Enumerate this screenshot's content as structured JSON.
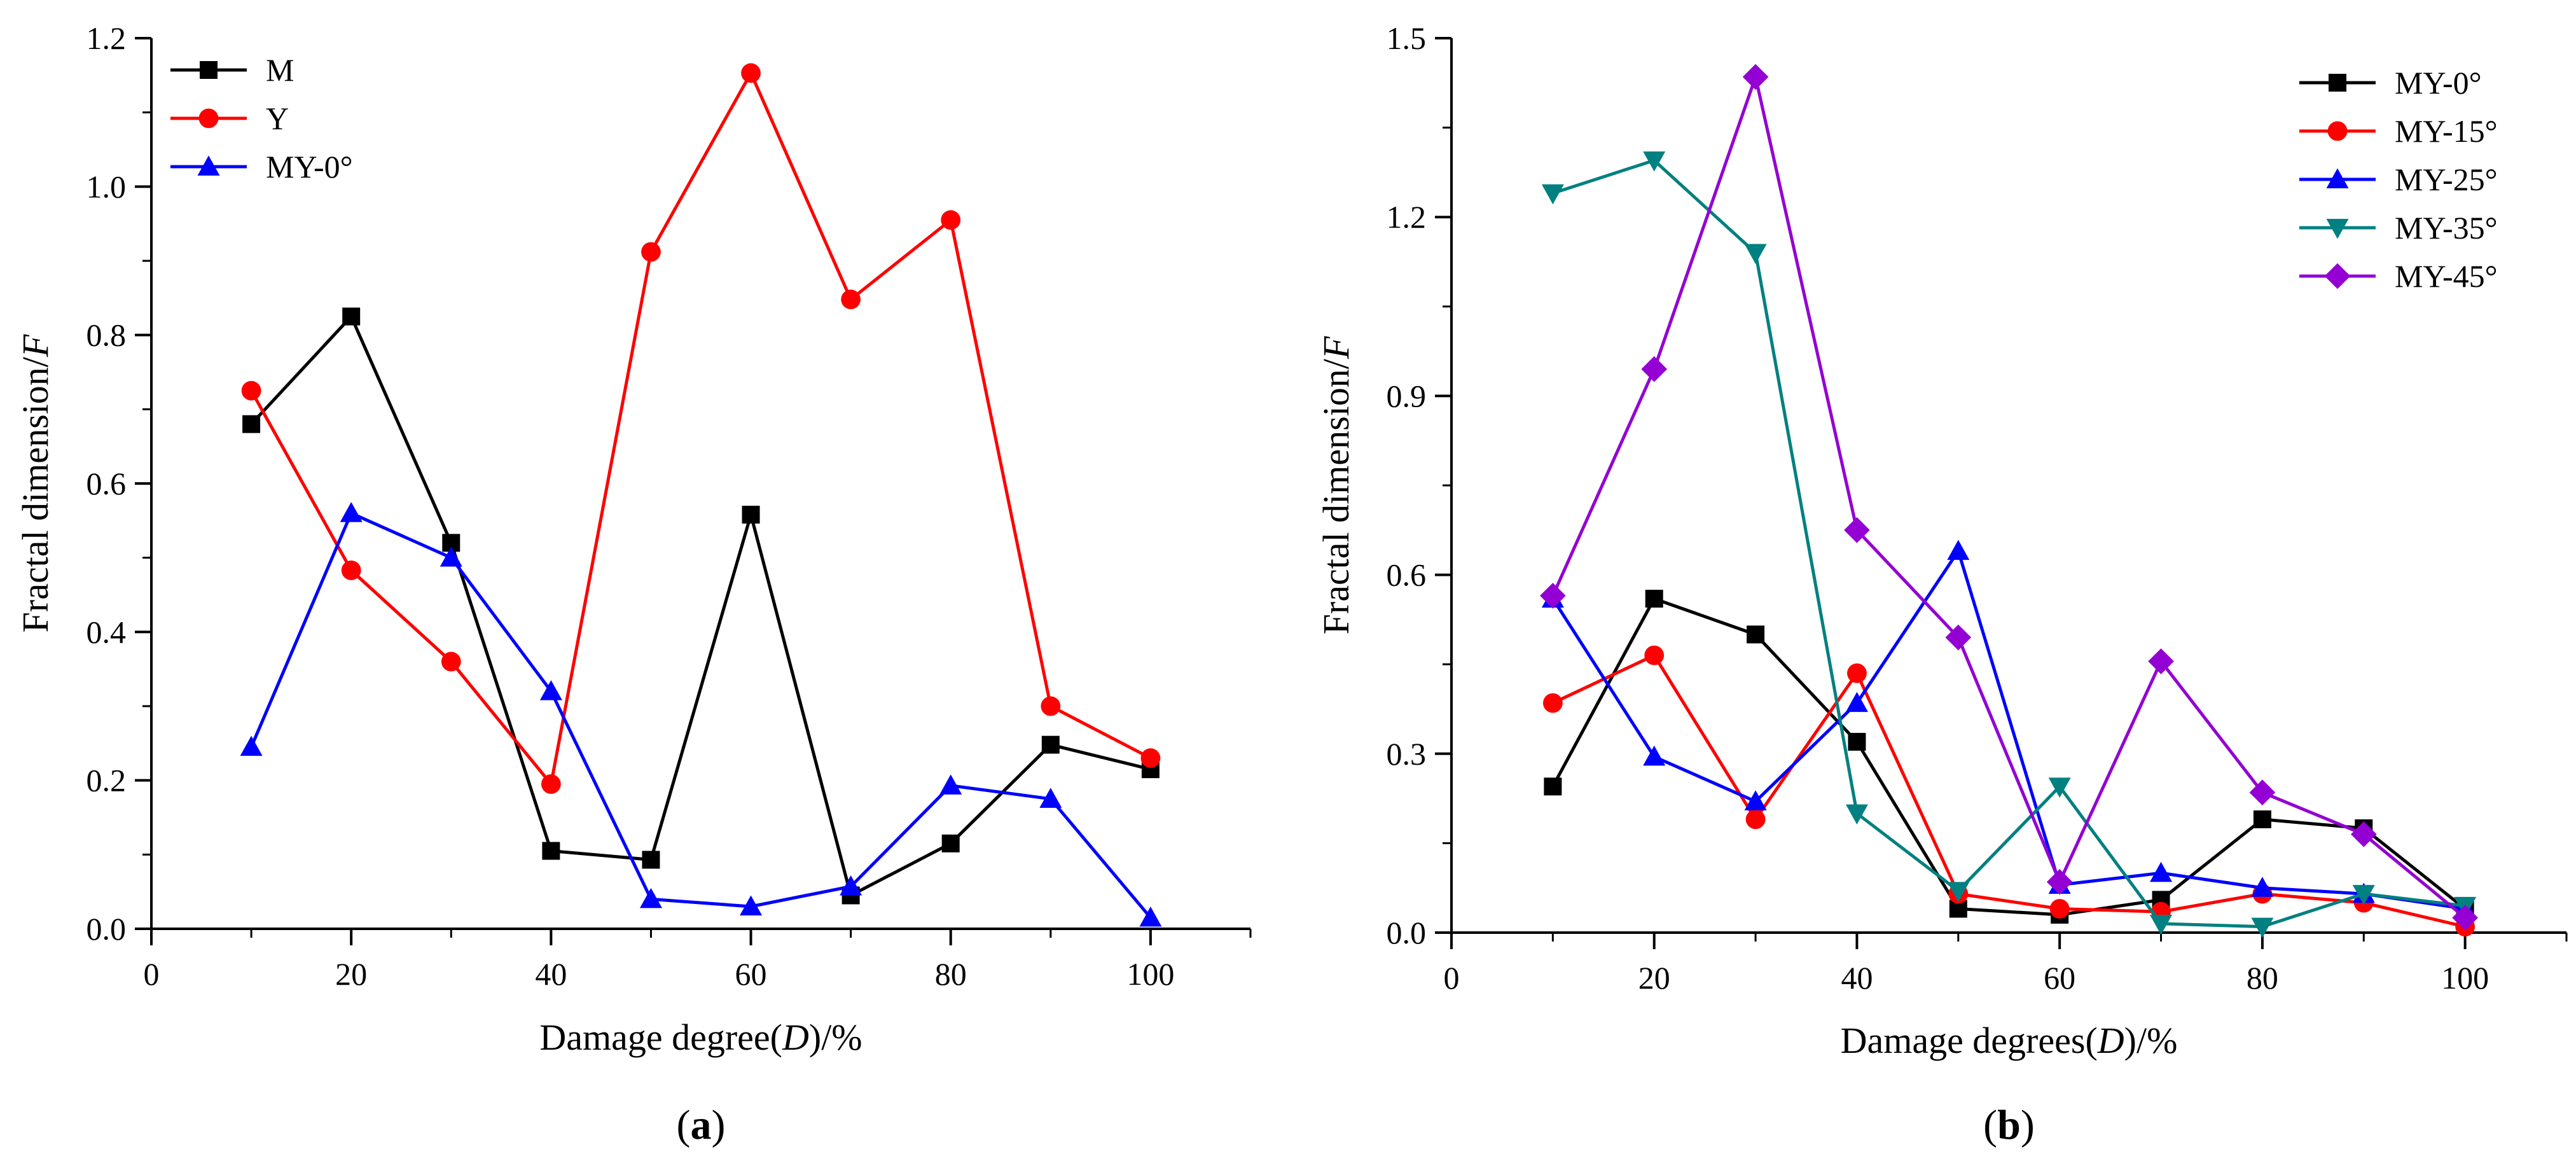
{
  "chart_data": [
    {
      "type": "line",
      "panel": "a",
      "panel_label": "(a)",
      "xlabel": "Damage degree(D)/%",
      "ylabel": "Fractal dimension/F",
      "xlim": [
        0,
        110
      ],
      "ylim": [
        0,
        1.2
      ],
      "xticks": [
        0,
        20,
        40,
        60,
        80,
        100
      ],
      "xtick_labels": [
        "0",
        "20",
        "40",
        "60",
        "80",
        "100"
      ],
      "yticks": [
        0.0,
        0.2,
        0.4,
        0.6,
        0.8,
        1.0,
        1.2
      ],
      "ytick_labels": [
        "0.0",
        "0.2",
        "0.4",
        "0.6",
        "0.8",
        "1.0",
        "1.2"
      ],
      "legend_position": "top-left",
      "x": [
        10,
        20,
        30,
        40,
        50,
        60,
        70,
        80,
        90,
        100
      ],
      "series": [
        {
          "name": "M",
          "color": "#000000",
          "marker": "square",
          "values": [
            0.68,
            0.825,
            0.52,
            0.105,
            0.093,
            0.558,
            0.045,
            0.115,
            0.248,
            0.215
          ]
        },
        {
          "name": "Y",
          "color": "#ff0000",
          "marker": "circle",
          "values": [
            0.725,
            0.483,
            0.36,
            0.195,
            0.912,
            1.153,
            0.848,
            0.955,
            0.3,
            0.23
          ]
        },
        {
          "name": "MY-0°",
          "color": "#0000ff",
          "marker": "triangle-up",
          "values": [
            0.245,
            0.56,
            0.5,
            0.32,
            0.04,
            0.03,
            0.057,
            0.193,
            0.175,
            0.015
          ]
        }
      ]
    },
    {
      "type": "line",
      "panel": "b",
      "panel_label": "(b)",
      "xlabel": "Damage degrees(D)/%",
      "ylabel": "Fractal dimension/F",
      "xlim": [
        0,
        110
      ],
      "ylim": [
        0,
        1.5
      ],
      "xticks": [
        0,
        20,
        40,
        60,
        80,
        100
      ],
      "xtick_labels": [
        "0",
        "20",
        "40",
        "60",
        "80",
        "100"
      ],
      "yticks": [
        0.0,
        0.3,
        0.6,
        0.9,
        1.2,
        1.5
      ],
      "ytick_labels": [
        "0.0",
        "0.3",
        "0.6",
        "0.9",
        "1.2",
        "1.5"
      ],
      "legend_position": "top-right",
      "x": [
        10,
        20,
        30,
        40,
        50,
        60,
        70,
        80,
        90,
        100
      ],
      "series": [
        {
          "name": "MY-0°",
          "color": "#000000",
          "marker": "square",
          "values": [
            0.245,
            0.56,
            0.5,
            0.32,
            0.04,
            0.03,
            0.055,
            0.19,
            0.175,
            0.04
          ]
        },
        {
          "name": "MY-15°",
          "color": "#ff0000",
          "marker": "circle",
          "values": [
            0.385,
            0.465,
            0.19,
            0.435,
            0.065,
            0.04,
            0.035,
            0.065,
            0.05,
            0.01
          ]
        },
        {
          "name": "MY-25°",
          "color": "#0000ff",
          "marker": "triangle-up",
          "values": [
            0.56,
            0.295,
            0.22,
            0.385,
            0.64,
            0.08,
            0.1,
            0.075,
            0.065,
            0.04
          ]
        },
        {
          "name": "MY-35°",
          "color": "#008080",
          "marker": "triangle-down",
          "values": [
            1.24,
            1.295,
            1.14,
            0.2,
            0.07,
            0.245,
            0.015,
            0.01,
            0.065,
            0.045
          ]
        },
        {
          "name": "MY-45°",
          "color": "#9400d3",
          "marker": "diamond",
          "values": [
            0.565,
            0.945,
            1.435,
            0.675,
            0.495,
            0.085,
            0.455,
            0.235,
            0.165,
            0.025
          ]
        }
      ]
    }
  ]
}
